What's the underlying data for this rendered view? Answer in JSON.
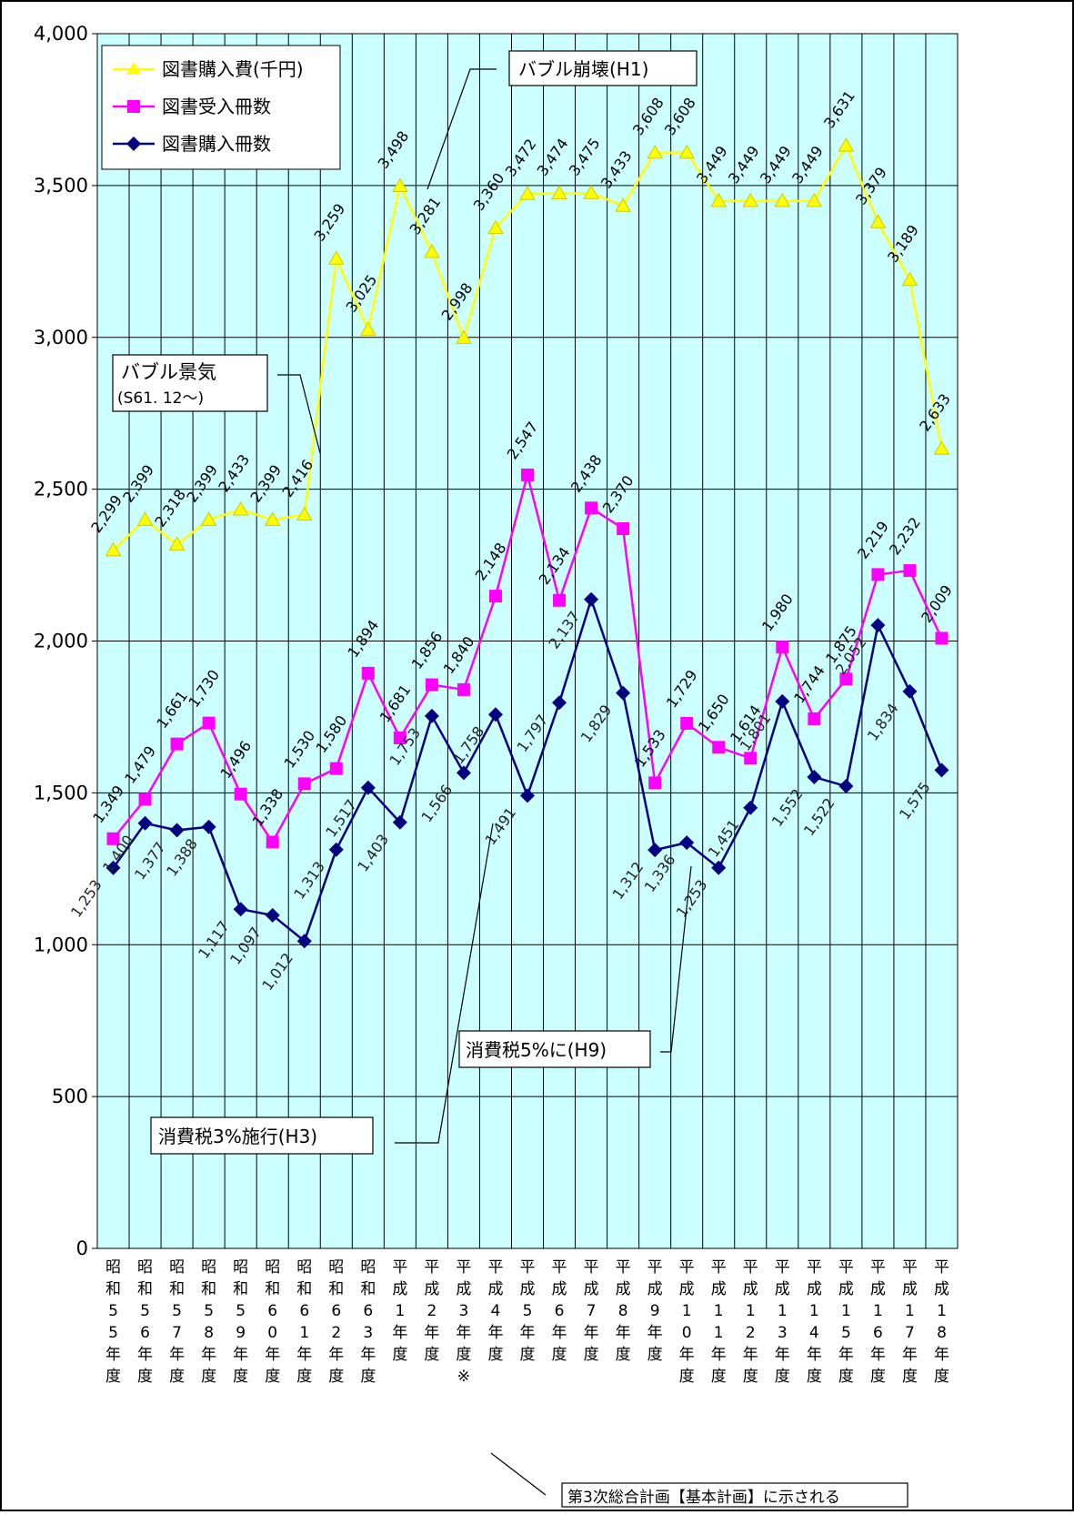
{
  "chart_data": {
    "type": "line",
    "ylim": [
      0,
      4000
    ],
    "yticks": [
      0,
      500,
      1000,
      1500,
      2000,
      2500,
      3000,
      3500,
      4000
    ],
    "ytick_labels": [
      "0",
      "500",
      "1,000",
      "1,500",
      "2,000",
      "2,500",
      "3,000",
      "3,500",
      "4,000"
    ],
    "grid": true,
    "legend_position": "top-left",
    "categories": [
      "昭和55年度",
      "昭和56年度",
      "昭和57年度",
      "昭和58年度",
      "昭和59年度",
      "昭和60年度",
      "昭和61年度",
      "昭和62年度",
      "昭和63年度",
      "平成1年度",
      "平成2年度",
      "平成3年度",
      "平成4年度",
      "平成5年度",
      "平成6年度",
      "平成7年度",
      "平成8年度",
      "平成9年度",
      "平成10年度",
      "平成11年度",
      "平成12年度",
      "平成13年度",
      "平成14年度",
      "平成15年度",
      "平成16年度",
      "平成17年度",
      "平成18年度"
    ],
    "category_labels": [
      [
        "昭",
        "和",
        "5",
        "5",
        "年",
        "度"
      ],
      [
        "昭",
        "和",
        "5",
        "6",
        "年",
        "度"
      ],
      [
        "昭",
        "和",
        "5",
        "7",
        "年",
        "度"
      ],
      [
        "昭",
        "和",
        "5",
        "8",
        "年",
        "度"
      ],
      [
        "昭",
        "和",
        "5",
        "9",
        "年",
        "度"
      ],
      [
        "昭",
        "和",
        "6",
        "0",
        "年",
        "度"
      ],
      [
        "昭",
        "和",
        "6",
        "1",
        "年",
        "度"
      ],
      [
        "昭",
        "和",
        "6",
        "2",
        "年",
        "度"
      ],
      [
        "昭",
        "和",
        "6",
        "3",
        "年",
        "度"
      ],
      [
        "平",
        "成",
        "1",
        "年",
        "度"
      ],
      [
        "平",
        "成",
        "2",
        "年",
        "度"
      ],
      [
        "平",
        "成",
        "3",
        "年",
        "度",
        "※"
      ],
      [
        "平",
        "成",
        "4",
        "年",
        "度"
      ],
      [
        "平",
        "成",
        "5",
        "年",
        "度"
      ],
      [
        "平",
        "成",
        "6",
        "年",
        "度"
      ],
      [
        "平",
        "成",
        "7",
        "年",
        "度"
      ],
      [
        "平",
        "成",
        "8",
        "年",
        "度"
      ],
      [
        "平",
        "成",
        "9",
        "年",
        "度"
      ],
      [
        "平",
        "成",
        "1",
        "0",
        "年",
        "度"
      ],
      [
        "平",
        "成",
        "1",
        "1",
        "年",
        "度"
      ],
      [
        "平",
        "成",
        "1",
        "2",
        "年",
        "度"
      ],
      [
        "平",
        "成",
        "1",
        "3",
        "年",
        "度"
      ],
      [
        "平",
        "成",
        "1",
        "4",
        "年",
        "度"
      ],
      [
        "平",
        "成",
        "1",
        "5",
        "年",
        "度"
      ],
      [
        "平",
        "成",
        "1",
        "6",
        "年",
        "度"
      ],
      [
        "平",
        "成",
        "1",
        "7",
        "年",
        "度"
      ],
      [
        "平",
        "成",
        "1",
        "8",
        "年",
        "度"
      ]
    ],
    "series": [
      {
        "name": "図書購入費(千円)",
        "color": "#ffff00",
        "marker": "triangle",
        "values": [
          2299,
          2399,
          2318,
          2399,
          2433,
          2399,
          2416,
          3259,
          3025,
          3498,
          3281,
          2998,
          3360,
          3472,
          3474,
          3475,
          3433,
          3608,
          3608,
          3449,
          3449,
          3449,
          3449,
          3631,
          3379,
          3189,
          2633
        ],
        "labels": [
          "2,299",
          "2,399",
          "2,318",
          "2,399",
          "2,433",
          "2,399",
          "2,416",
          "3,259",
          "3,025",
          "3,498",
          "3,281",
          "2,998",
          "3,360",
          "3,472",
          "3,474",
          "3,475",
          "3,433",
          "3,608",
          "3,608",
          "3,449",
          "3,449",
          "3,449",
          "3,449",
          "3,631",
          "3,379",
          "3,189",
          "2,633"
        ]
      },
      {
        "name": "図書受入冊数",
        "color": "#ff00ff",
        "marker": "square",
        "values": [
          1349,
          1479,
          1661,
          1730,
          1496,
          1338,
          1530,
          1580,
          1894,
          1681,
          1856,
          1840,
          2148,
          2547,
          2134,
          2438,
          2370,
          1533,
          1729,
          1650,
          1614,
          1980,
          1744,
          1875,
          2219,
          2232,
          2009
        ],
        "labels": [
          "1,349",
          "1,479",
          "1,661",
          "1,730",
          "1,496",
          "1,338",
          "1,530",
          "1,580",
          "1,894",
          "1,681",
          "1,856",
          "1,840",
          "2,148",
          "2,547",
          "2,134",
          "2,438",
          "2,370",
          "1,533",
          "1,729",
          "1,650",
          "1,614",
          "1,980",
          "1,744",
          "1,875",
          "2,219",
          "2,232",
          "2,009"
        ]
      },
      {
        "name": "図書購入冊数",
        "color": "#000080",
        "marker": "diamond",
        "values": [
          1253,
          1400,
          1377,
          1388,
          1117,
          1097,
          1012,
          1313,
          1517,
          1403,
          1753,
          1566,
          1758,
          1491,
          1797,
          2137,
          1829,
          1312,
          1336,
          1253,
          1451,
          1801,
          1552,
          1522,
          2052,
          1834,
          1575
        ],
        "labels": [
          "1,253",
          "1,400",
          "1,377",
          "1,388",
          "1,117",
          "1,097",
          "1,012",
          "1,313",
          "1,517",
          "1,403",
          "1,753",
          "1,566",
          "1,758",
          "1,491",
          "1,797",
          "2,137",
          "1,829",
          "1,312",
          "1,336",
          "1,253",
          "1,451",
          "1,801",
          "1,552",
          "1,522",
          "2,052",
          "1,834",
          "1,575"
        ]
      }
    ],
    "annotations": [
      {
        "text": "バブル崩壊(H1)",
        "category_index": 9,
        "value": 3498
      },
      {
        "text": "バブル景気",
        "text2": "(S61. 12～)",
        "category_index": 6,
        "value": 2750
      },
      {
        "text": "消費税3%施行(H3)",
        "category_index": 11,
        "value": 1566
      },
      {
        "text": "消費税5%に(H9)",
        "category_index": 17,
        "value": 1312
      },
      {
        "text": "第3次総合計画【基本計画】に示される",
        "category_index": 11
      }
    ]
  }
}
